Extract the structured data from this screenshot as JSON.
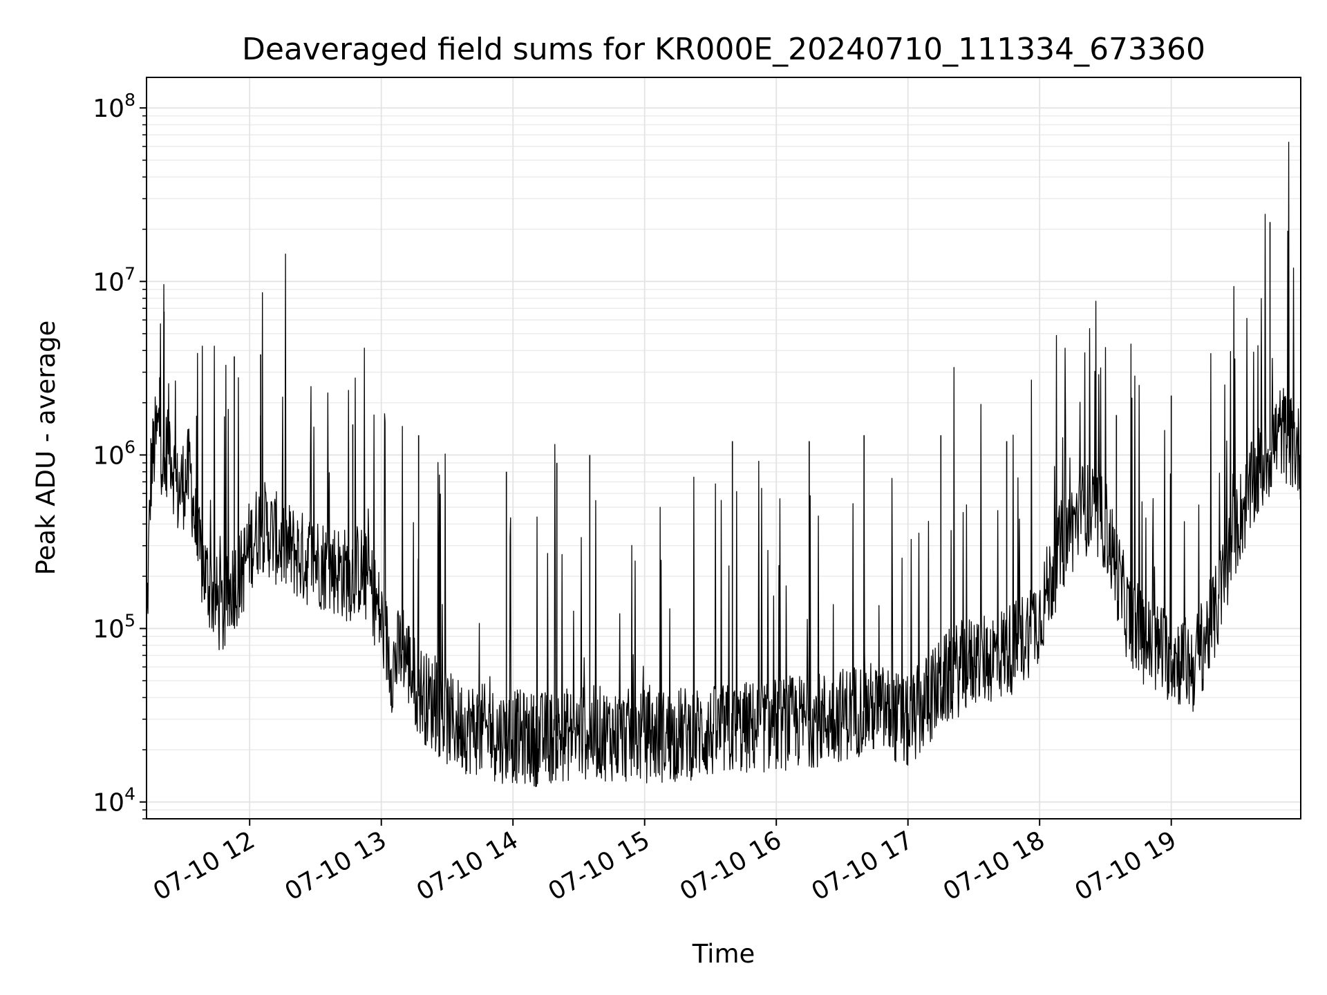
{
  "chart_data": {
    "type": "line",
    "title": "Deaveraged field sums for KR000E_20240710_111334_673360",
    "xlabel": "Time",
    "ylabel": "Peak ADU - average",
    "y_scale": "log",
    "ylim": [
      8000,
      150000000
    ],
    "xlim": [
      "2024-07-10 11:13",
      "2024-07-10 19:59"
    ],
    "grid": true,
    "grid_minor": true,
    "line_color": "#000000",
    "x_ticks": [
      {
        "value": "2024-07-10 12:00",
        "label": "07-10 12"
      },
      {
        "value": "2024-07-10 13:00",
        "label": "07-10 13"
      },
      {
        "value": "2024-07-10 14:00",
        "label": "07-10 14"
      },
      {
        "value": "2024-07-10 15:00",
        "label": "07-10 15"
      },
      {
        "value": "2024-07-10 16:00",
        "label": "07-10 16"
      },
      {
        "value": "2024-07-10 17:00",
        "label": "07-10 17"
      },
      {
        "value": "2024-07-10 18:00",
        "label": "07-10 18"
      },
      {
        "value": "2024-07-10 19:00",
        "label": "07-10 19"
      }
    ],
    "y_ticks": [
      {
        "value": 10000,
        "base": "10",
        "exp": "4"
      },
      {
        "value": 100000,
        "base": "10",
        "exp": "5"
      },
      {
        "value": 1000000,
        "base": "10",
        "exp": "6"
      },
      {
        "value": 10000000,
        "base": "10",
        "exp": "7"
      },
      {
        "value": 100000000,
        "base": "10",
        "exp": "8"
      }
    ],
    "series": [
      {
        "x": [
          "2024-07-10 11:13",
          "2024-07-10 11:15",
          "2024-07-10 11:17",
          "2024-07-10 11:19",
          "2024-07-10 11:21",
          "2024-07-10 11:23",
          "2024-07-10 11:25",
          "2024-07-10 11:27",
          "2024-07-10 11:30",
          "2024-07-10 11:33",
          "2024-07-10 11:36",
          "2024-07-10 11:40",
          "2024-07-10 11:44",
          "2024-07-10 11:48",
          "2024-07-10 11:52",
          "2024-07-10 11:56",
          "2024-07-10 12:00",
          "2024-07-10 12:05",
          "2024-07-10 12:10",
          "2024-07-10 12:15",
          "2024-07-10 12:20",
          "2024-07-10 12:25",
          "2024-07-10 12:30",
          "2024-07-10 12:35",
          "2024-07-10 12:40",
          "2024-07-10 12:45",
          "2024-07-10 12:50",
          "2024-07-10 12:55",
          "2024-07-10 13:00",
          "2024-07-10 13:05",
          "2024-07-10 13:10",
          "2024-07-10 13:15",
          "2024-07-10 13:20",
          "2024-07-10 13:25",
          "2024-07-10 13:30",
          "2024-07-10 13:35",
          "2024-07-10 13:40",
          "2024-07-10 13:45",
          "2024-07-10 13:50",
          "2024-07-10 13:55",
          "2024-07-10 14:00",
          "2024-07-10 14:10",
          "2024-07-10 14:20",
          "2024-07-10 14:30",
          "2024-07-10 14:40",
          "2024-07-10 14:50",
          "2024-07-10 15:00",
          "2024-07-10 15:10",
          "2024-07-10 15:20",
          "2024-07-10 15:30",
          "2024-07-10 15:40",
          "2024-07-10 15:50",
          "2024-07-10 16:00",
          "2024-07-10 16:10",
          "2024-07-10 16:20",
          "2024-07-10 16:30",
          "2024-07-10 16:40",
          "2024-07-10 16:50",
          "2024-07-10 17:00",
          "2024-07-10 17:10",
          "2024-07-10 17:20",
          "2024-07-10 17:30",
          "2024-07-10 17:40",
          "2024-07-10 17:50",
          "2024-07-10 18:00",
          "2024-07-10 18:10",
          "2024-07-10 18:20",
          "2024-07-10 18:30",
          "2024-07-10 18:40",
          "2024-07-10 18:50",
          "2024-07-10 19:00",
          "2024-07-10 19:10",
          "2024-07-10 19:20",
          "2024-07-10 19:30",
          "2024-07-10 19:40",
          "2024-07-10 19:50",
          "2024-07-10 19:59"
        ],
        "y": [
          90000,
          800000,
          1200000,
          1500000,
          700000,
          1400000,
          900000,
          600000,
          700000,
          800000,
          300000,
          200000,
          150000,
          120000,
          180000,
          200000,
          300000,
          400000,
          350000,
          300000,
          280000,
          250000,
          250000,
          230000,
          220000,
          200000,
          220000,
          180000,
          110000,
          60000,
          80000,
          50000,
          40000,
          35000,
          30000,
          28000,
          27000,
          26000,
          25000,
          24000,
          24000,
          23000,
          24000,
          25000,
          25000,
          24000,
          24000,
          24000,
          25000,
          25000,
          26000,
          27000,
          28000,
          29000,
          30000,
          32000,
          35000,
          33000,
          28000,
          40000,
          55000,
          65000,
          70000,
          80000,
          120000,
          300000,
          500000,
          400000,
          120000,
          80000,
          70000,
          60000,
          120000,
          400000,
          800000,
          1400000,
          1000000
        ]
      }
    ],
    "spikes": [
      {
        "x": "2024-07-10 11:19",
        "y": 2800000
      },
      {
        "x": "2024-07-10 11:21",
        "y": 6700000
      },
      {
        "x": "2024-07-10 11:53",
        "y": 3700000
      },
      {
        "x": "2024-07-10 12:05",
        "y": 3800000
      },
      {
        "x": "2024-07-10 12:47",
        "y": 1500000
      },
      {
        "x": "2024-07-10 13:17",
        "y": 1300000
      },
      {
        "x": "2024-07-10 13:57",
        "y": 800000
      },
      {
        "x": "2024-07-10 14:20",
        "y": 900000
      },
      {
        "x": "2024-07-10 14:35",
        "y": 1000000
      },
      {
        "x": "2024-07-10 15:40",
        "y": 1200000
      },
      {
        "x": "2024-07-10 16:15",
        "y": 1200000
      },
      {
        "x": "2024-07-10 16:40",
        "y": 1300000
      },
      {
        "x": "2024-07-10 17:15",
        "y": 1300000
      },
      {
        "x": "2024-07-10 17:45",
        "y": 1200000
      },
      {
        "x": "2024-07-10 18:35",
        "y": 1700000
      },
      {
        "x": "2024-07-10 19:00",
        "y": 2200000
      },
      {
        "x": "2024-07-10 19:45",
        "y": 22000000
      }
    ]
  }
}
